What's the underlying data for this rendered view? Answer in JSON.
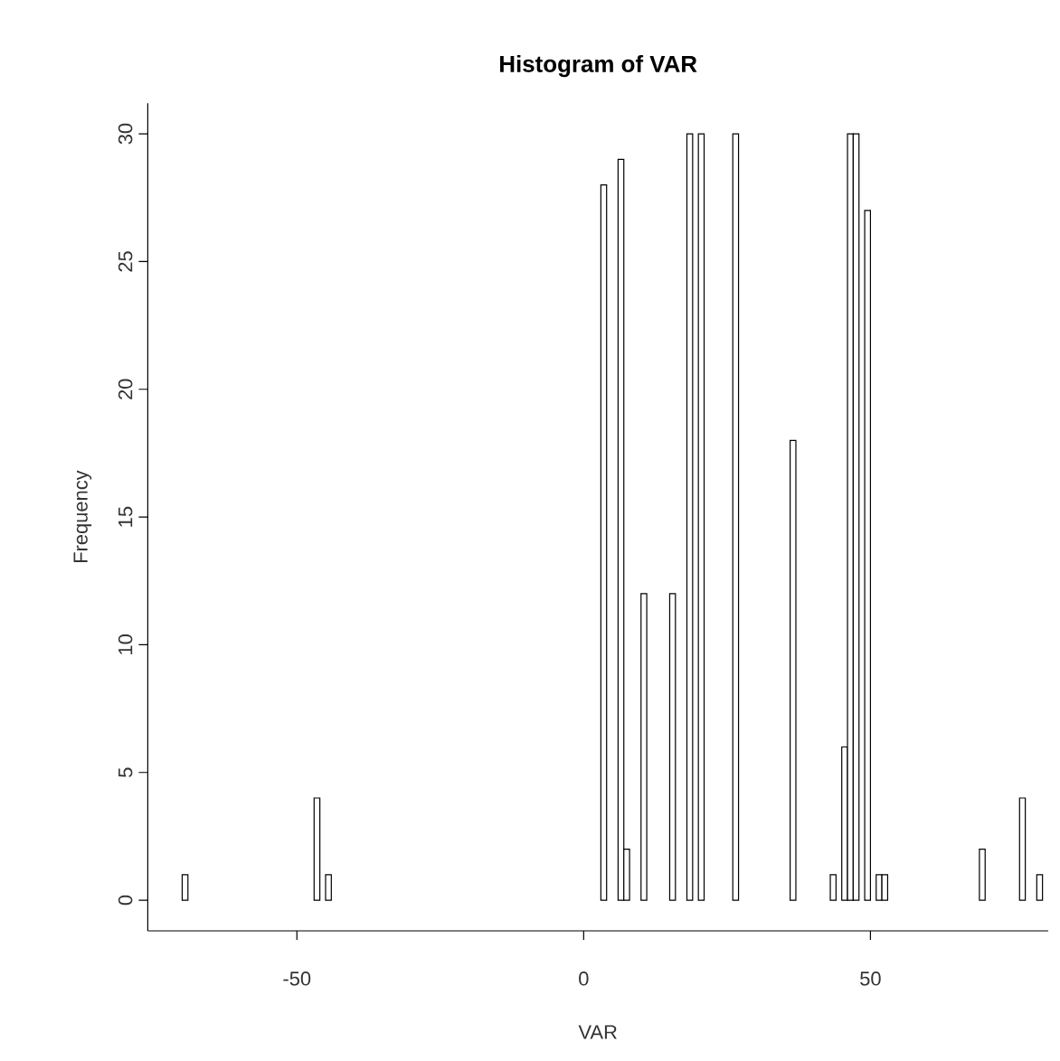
{
  "chart_data": {
    "type": "histogram",
    "title": "Histogram of VAR",
    "xlabel": "VAR",
    "ylabel": "Frequency",
    "bins": [
      -70,
      -69,
      -68,
      -67,
      -66,
      -65,
      -64,
      -63,
      -62,
      -61,
      -60,
      -59,
      -58,
      -57,
      -56,
      -55,
      -54,
      -53,
      -52,
      -51,
      -50,
      -49,
      -48,
      -47,
      -46,
      -45,
      -44,
      -43,
      -42,
      -41,
      -40,
      -39,
      -38,
      -37,
      -36,
      -35,
      -34,
      -33,
      -32,
      -31,
      -30,
      -29,
      -28,
      -27,
      -26,
      -25,
      -24,
      -23,
      -22,
      -21,
      -20,
      -19,
      -18,
      -17,
      -16,
      -15,
      -14,
      -13,
      -12,
      -11,
      -10,
      -9,
      -8,
      -7,
      -6,
      -5,
      -4,
      -3,
      -2,
      -1,
      0,
      1,
      2,
      3,
      4,
      5,
      6,
      7,
      8,
      9,
      10,
      11,
      12,
      13,
      14,
      15,
      16,
      17,
      18,
      19,
      20,
      21,
      22,
      23,
      24,
      25,
      26,
      27,
      28,
      29,
      30,
      31,
      32,
      33,
      34,
      35,
      36,
      37,
      38,
      39,
      40,
      41,
      42,
      43,
      44,
      45,
      46,
      47,
      48,
      49,
      50,
      51,
      52,
      53,
      54,
      55,
      56,
      57,
      58,
      59,
      60,
      61,
      62,
      63,
      64,
      65,
      66,
      67,
      68,
      69,
      70,
      71,
      72,
      73,
      74,
      75,
      76,
      77,
      78,
      79,
      80
    ],
    "values": [
      1,
      0,
      0,
      0,
      0,
      0,
      0,
      0,
      0,
      0,
      0,
      0,
      0,
      0,
      0,
      0,
      0,
      0,
      0,
      0,
      0,
      0,
      0,
      4,
      0,
      1,
      0,
      0,
      0,
      0,
      0,
      0,
      0,
      0,
      0,
      0,
      0,
      0,
      0,
      0,
      0,
      0,
      0,
      0,
      0,
      0,
      0,
      0,
      0,
      0,
      0,
      0,
      0,
      0,
      0,
      0,
      0,
      0,
      0,
      0,
      0,
      0,
      0,
      0,
      0,
      0,
      0,
      0,
      0,
      0,
      0,
      0,
      0,
      28,
      0,
      0,
      29,
      2,
      0,
      0,
      12,
      0,
      0,
      0,
      0,
      12,
      0,
      0,
      30,
      0,
      30,
      0,
      0,
      0,
      0,
      0,
      30,
      0,
      0,
      0,
      0,
      0,
      0,
      0,
      0,
      0,
      18,
      0,
      0,
      0,
      0,
      0,
      0,
      1,
      0,
      6,
      30,
      30,
      0,
      27,
      0,
      1,
      1,
      0,
      0,
      0,
      0,
      0,
      0,
      0,
      0,
      0,
      0,
      0,
      0,
      0,
      0,
      0,
      0,
      2,
      0,
      0,
      0,
      0,
      0,
      0,
      4,
      0,
      0,
      1
    ],
    "color": "#ffffff",
    "xlim": [
      -76,
      81
    ],
    "ylim": [
      -1.2,
      31.2
    ],
    "xticks": [
      -50,
      0,
      50
    ],
    "yticks": [
      0,
      5,
      10,
      15,
      20,
      25,
      30
    ],
    "grid": false
  }
}
